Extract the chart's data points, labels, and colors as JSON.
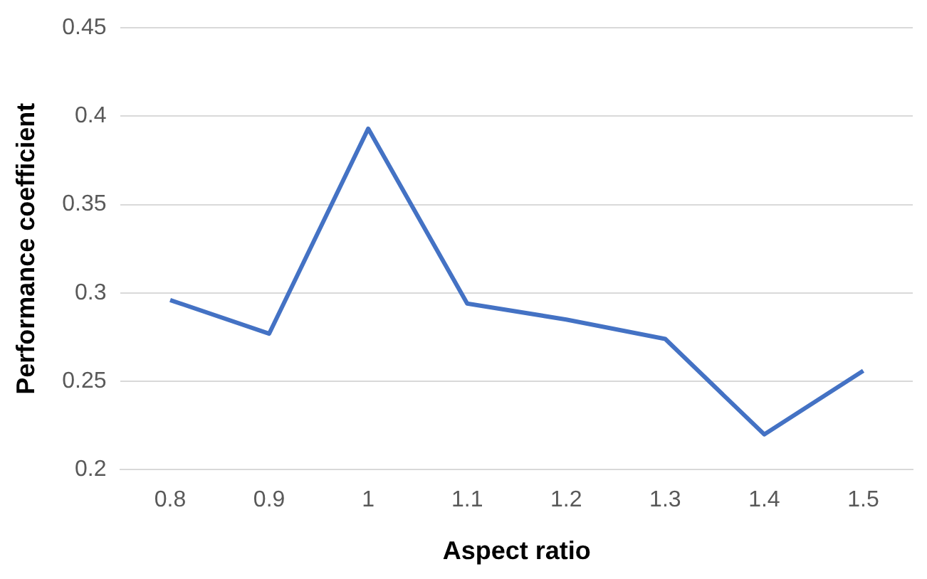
{
  "chart_data": {
    "type": "line",
    "xlabel": "Aspect ratio",
    "ylabel": "Performance coefficient",
    "categories": [
      "0.8",
      "0.9",
      "1",
      "1.1",
      "1.2",
      "1.3",
      "1.4",
      "1.5"
    ],
    "series": [
      {
        "color": "#4472c4",
        "values": [
          0.296,
          0.277,
          0.393,
          0.294,
          0.285,
          0.274,
          0.22,
          0.256
        ]
      }
    ],
    "ylim": [
      0.2,
      0.45
    ],
    "yticks": [
      0.2,
      0.25,
      0.3,
      0.35,
      0.4,
      0.45
    ],
    "grid": "y",
    "legend": false,
    "marker": "none",
    "line_style": "solid"
  }
}
